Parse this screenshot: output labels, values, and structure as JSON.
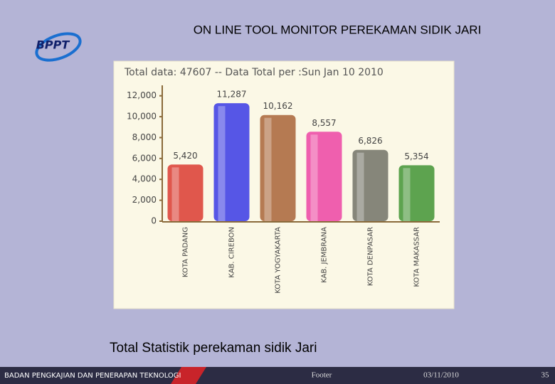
{
  "slide_title": "ON LINE TOOL MONITOR PEREKAMAN SIDIK JARI",
  "logo": "BPPT",
  "caption": "Total  Statistik perekaman sidik Jari",
  "footer": {
    "organization": "BADAN PENGKAJIAN DAN PENERAPAN TEKNOLOGI",
    "label": "Footer",
    "date": "03/11/2010",
    "page": "35"
  },
  "chart_data": {
    "type": "bar",
    "title": "Total data: 47607 -- Data Total per :Sun Jan 10 2010",
    "categories": [
      "KOTA PADANG",
      "KAB. CIREBON",
      "KOTA YOGYAKARTA",
      "KAB. JEMBRANA",
      "KOTA DENPASAR",
      "KOTA MAKASSAR"
    ],
    "values": [
      5420,
      11287,
      10162,
      8557,
      6826,
      5354
    ],
    "value_labels": [
      "5,420",
      "11,287",
      "10,162",
      "8,557",
      "6,826",
      "5,354"
    ],
    "colors": [
      "#e0574c",
      "#5656e6",
      "#b57a52",
      "#ef5fae",
      "#86867a",
      "#5da34f"
    ],
    "ylim": [
      0,
      13000
    ],
    "yticks": [
      0,
      {
        "value": 2000,
        "label": "2,000"
      },
      {
        "value": 4000,
        "label": "4,000"
      },
      {
        "value": 6000,
        "label": "6,000"
      },
      {
        "value": 8000,
        "label": "8,000"
      },
      {
        "value": 10000,
        "label": "10,000"
      },
      {
        "value": 12000,
        "label": "12,000"
      }
    ],
    "grid": false
  }
}
